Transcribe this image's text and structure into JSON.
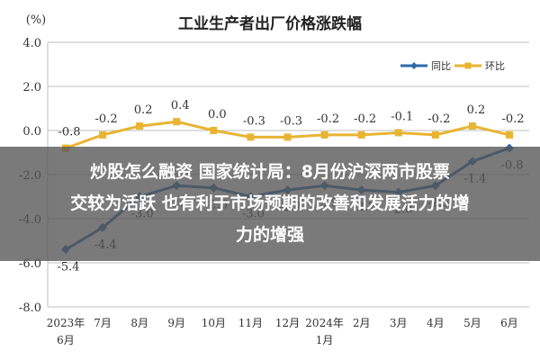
{
  "chart_data": {
    "type": "line",
    "title": "工业生产者出厂价格涨跌幅",
    "unit_label": "(%)",
    "ylim": [
      -8.0,
      4.0
    ],
    "yticks": [
      "4.0",
      "2.0",
      "0.0",
      "-2.0",
      "-4.0",
      "-6.0",
      "-8.0"
    ],
    "categories": [
      "2023年6月",
      "7月",
      "8月",
      "9月",
      "10月",
      "11月",
      "12月",
      "2024年1月",
      "2月",
      "3月",
      "4月",
      "5月",
      "6月"
    ],
    "x_tick_lines": [
      [
        "2023年",
        "6月"
      ],
      [
        "7月"
      ],
      [
        "8月"
      ],
      [
        "9月"
      ],
      [
        "10月"
      ],
      [
        "11月"
      ],
      [
        "12月"
      ],
      [
        "2024年",
        "1月"
      ],
      [
        "2月"
      ],
      [
        "3月"
      ],
      [
        "4月"
      ],
      [
        "5月"
      ],
      [
        "6月"
      ]
    ],
    "series": [
      {
        "name": "同比",
        "color": "#2e6aa8",
        "values": [
          -5.4,
          -4.4,
          -3.0,
          -2.5,
          -2.6,
          -3.0,
          -2.7,
          -2.5,
          -2.7,
          -2.8,
          -2.5,
          -1.4,
          -0.8
        ],
        "labels": [
          "-5.4",
          "-4.4",
          "-3.0",
          "-2.5",
          "-2.6",
          "-3.0",
          "-2.7",
          "-2.5",
          "-2.7",
          "-2.8",
          "-2.5",
          "-1.4",
          "-0.8"
        ]
      },
      {
        "name": "环比",
        "color": "#e8b432",
        "values": [
          -0.8,
          -0.2,
          0.2,
          0.4,
          0.0,
          -0.3,
          -0.3,
          -0.2,
          -0.2,
          -0.1,
          -0.2,
          0.2,
          -0.2
        ],
        "labels": [
          "-0.8",
          "-0.2",
          "0.2",
          "0.4",
          "0.0",
          "-0.3",
          "-0.3",
          "-0.2",
          "-0.2",
          "-0.1",
          "-0.2",
          "0.2",
          "-0.2"
        ]
      }
    ],
    "grid": true,
    "legend_position": "top-right"
  },
  "overlay": {
    "line1": "炒股怎么融资 国家统计局：8月份沪深两市股票",
    "line2": "交较为活跃 也有利于市场预期的改善和发展活力的增",
    "line3": "力的增强"
  }
}
